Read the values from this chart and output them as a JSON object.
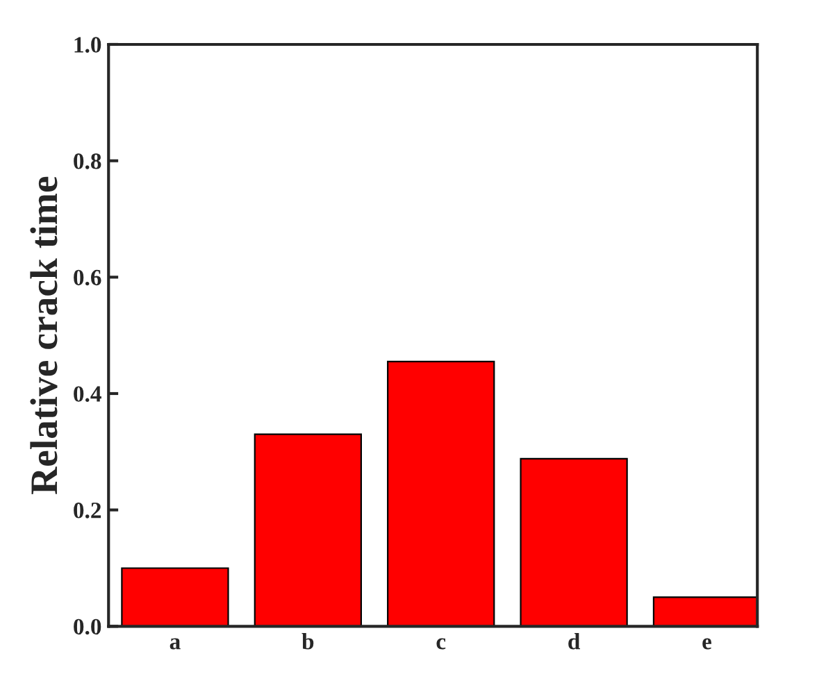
{
  "chart_data": {
    "type": "bar",
    "ylabel": "Relative crack time",
    "categories": [
      "a",
      "b",
      "c",
      "d",
      "e"
    ],
    "values": [
      0.1,
      0.33,
      0.455,
      0.288,
      0.05
    ],
    "color": "#ff0000",
    "ylim": [
      0.0,
      1.0
    ],
    "yticks": [
      {
        "value": 0.0,
        "label": "0.0"
      },
      {
        "value": 0.2,
        "label": "0.2"
      },
      {
        "value": 0.4,
        "label": "0.4"
      },
      {
        "value": 0.6,
        "label": "0.6"
      },
      {
        "value": 0.8,
        "label": "0.8"
      },
      {
        "value": 1.0,
        "label": "1.0"
      }
    ],
    "grid": false,
    "legend": false
  }
}
